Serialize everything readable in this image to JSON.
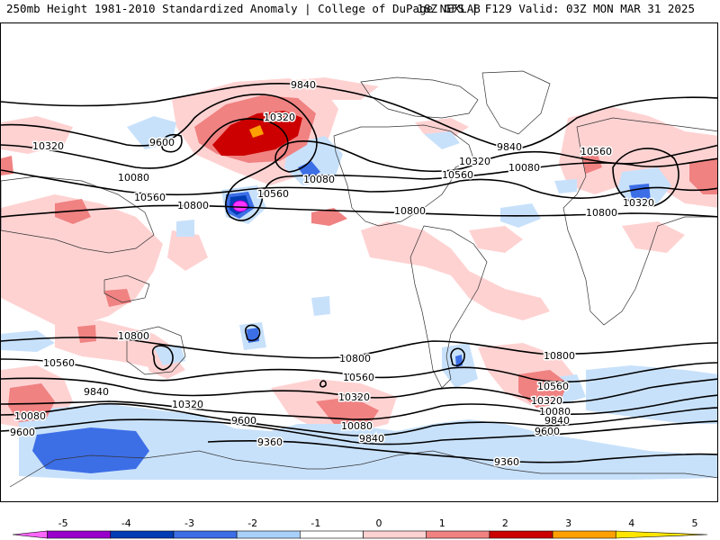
{
  "header": {
    "left": "250mb Height 1981-2010 Standardized Anomaly | College of DuPage NEXLAB",
    "right": "18Z GFS | F129 Valid: 03Z MON MAR 31 2025"
  },
  "contour_labels": {
    "c9840": "9840",
    "c10320": "10320",
    "c10080": "10080",
    "c10560": "10560",
    "c10800": "10800",
    "c9600": "9600",
    "c9360": "9360"
  },
  "colorbar": {
    "ticks": [
      "-5",
      "-4",
      "-3",
      "-2",
      "-1",
      "0",
      "1",
      "2",
      "3",
      "4",
      "5"
    ],
    "colors": [
      "#ff66ff",
      "#9900cc",
      "#003cb4",
      "#3c6ee6",
      "#a8d0fa",
      "#ffffff",
      "#ffd2d2",
      "#f08282",
      "#cc0000",
      "#ffa000",
      "#ffe600"
    ]
  },
  "colors": {
    "positive_light": "#ffd2d2",
    "positive_mid": "#f08282",
    "positive_strong": "#cc0000",
    "positive_extreme": "#ffa000",
    "negative_light": "#c8e1fb",
    "negative_mid": "#3c6ee6",
    "negative_strong": "#003cb4",
    "negative_extreme": "#ff33ff"
  }
}
